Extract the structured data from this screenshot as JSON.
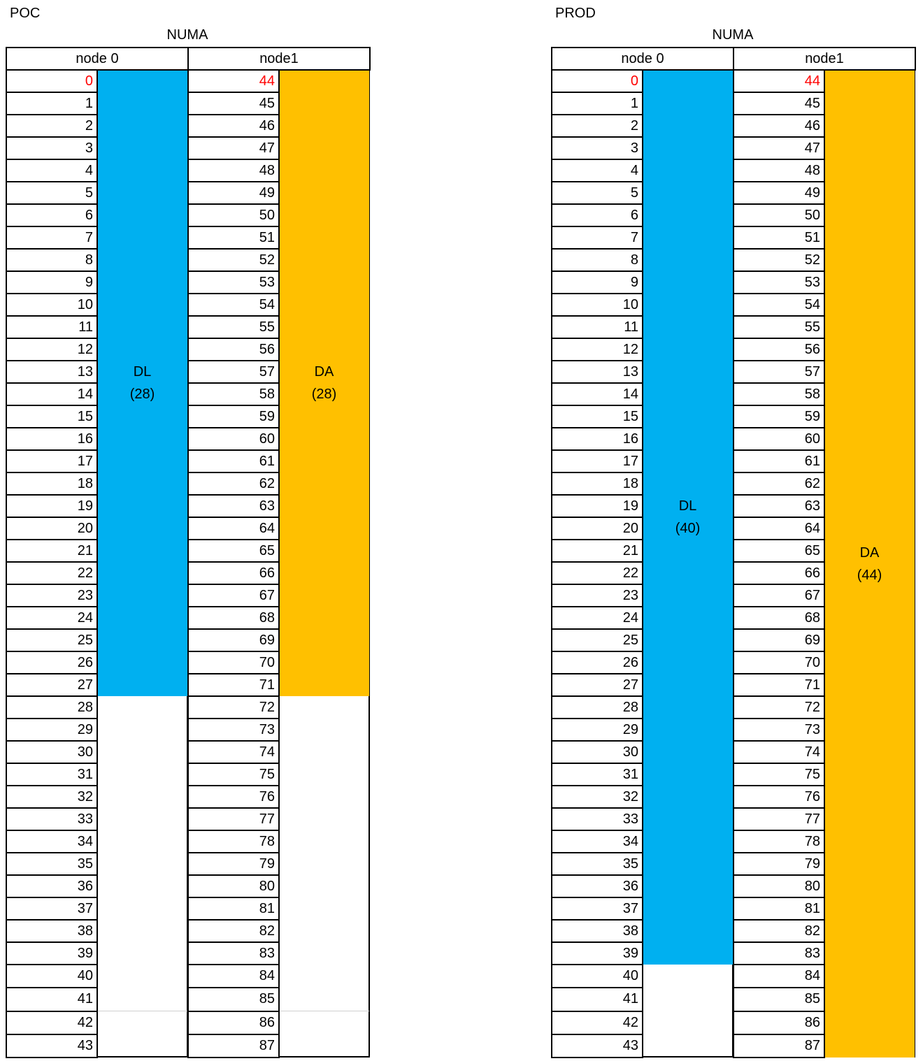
{
  "tables": [
    {
      "title": "POC",
      "group_header": "NUMA",
      "nodes": [
        "node 0",
        "node1"
      ],
      "node0_cpus": [
        0,
        1,
        2,
        3,
        4,
        5,
        6,
        7,
        8,
        9,
        10,
        11,
        12,
        13,
        14,
        15,
        16,
        17,
        18,
        19,
        20,
        21,
        22,
        23,
        24,
        25,
        26,
        27,
        28,
        29,
        30,
        31,
        32,
        33,
        34,
        35,
        36,
        37,
        38,
        39,
        40,
        41,
        42,
        43
      ],
      "node1_cpus": [
        44,
        45,
        46,
        47,
        48,
        49,
        50,
        51,
        52,
        53,
        54,
        55,
        56,
        57,
        58,
        59,
        60,
        61,
        62,
        63,
        64,
        65,
        66,
        67,
        68,
        69,
        70,
        71,
        72,
        73,
        74,
        75,
        76,
        77,
        78,
        79,
        80,
        81,
        82,
        83,
        84,
        85,
        86,
        87
      ],
      "highlight_first_row_color": "#FF0000",
      "blocks": [
        {
          "node": 0,
          "label": "DL",
          "count": "(28)",
          "rows": 28,
          "color": "#00B0F0"
        },
        {
          "node": 1,
          "label": "DA",
          "count": "(28)",
          "rows": 28,
          "color": "#FFC000"
        }
      ]
    },
    {
      "title": "PROD",
      "group_header": "NUMA",
      "nodes": [
        "node 0",
        "node1"
      ],
      "node0_cpus": [
        0,
        1,
        2,
        3,
        4,
        5,
        6,
        7,
        8,
        9,
        10,
        11,
        12,
        13,
        14,
        15,
        16,
        17,
        18,
        19,
        20,
        21,
        22,
        23,
        24,
        25,
        26,
        27,
        28,
        29,
        30,
        31,
        32,
        33,
        34,
        35,
        36,
        37,
        38,
        39,
        40,
        41,
        42,
        43
      ],
      "node1_cpus": [
        44,
        45,
        46,
        47,
        48,
        49,
        50,
        51,
        52,
        53,
        54,
        55,
        56,
        57,
        58,
        59,
        60,
        61,
        62,
        63,
        64,
        65,
        66,
        67,
        68,
        69,
        70,
        71,
        72,
        73,
        74,
        75,
        76,
        77,
        78,
        79,
        80,
        81,
        82,
        83,
        84,
        85,
        86,
        87
      ],
      "highlight_first_row_color": "#FF0000",
      "blocks": [
        {
          "node": 0,
          "label": "DL",
          "count": "(40)",
          "rows": 40,
          "color": "#00B0F0"
        },
        {
          "node": 1,
          "label": "DA",
          "count": "(44)",
          "rows": 44,
          "color": "#FFC000"
        }
      ]
    }
  ]
}
